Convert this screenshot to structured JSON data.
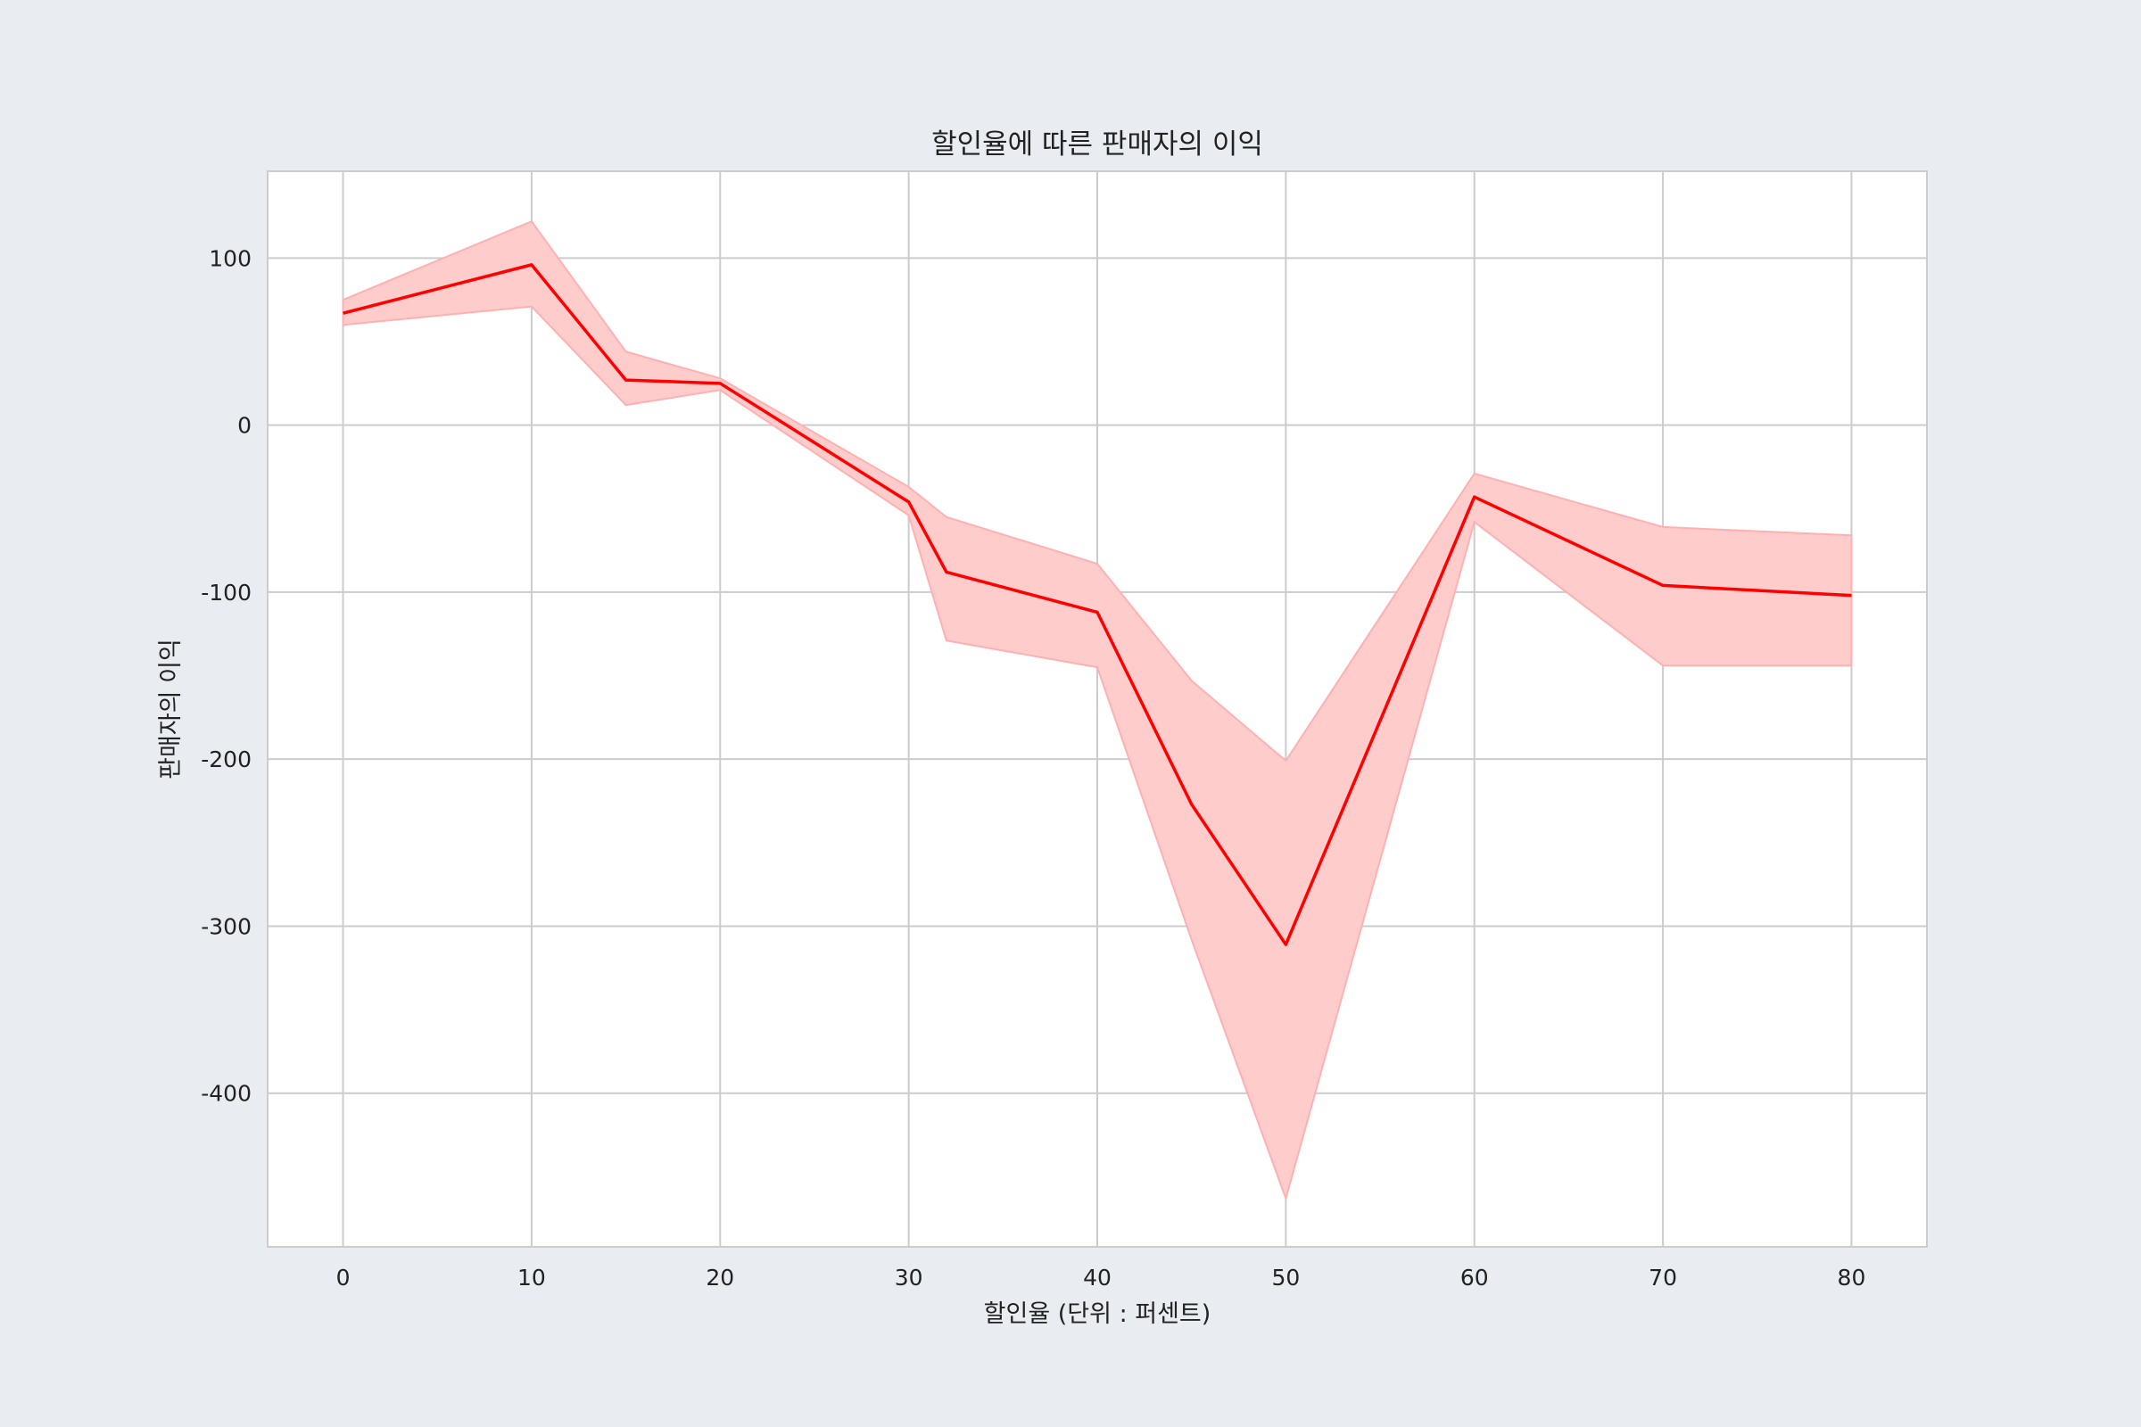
{
  "chart_data": {
    "type": "line",
    "title": "할인율에 따른 판매자의 이익",
    "xlabel": "할인율 (단위 : 퍼센트)",
    "ylabel": "판매자의 이익",
    "xlim": [
      -4,
      84
    ],
    "ylim": [
      -492,
      152
    ],
    "xticks": [
      0,
      10,
      20,
      30,
      40,
      50,
      60,
      70,
      80
    ],
    "yticks": [
      100,
      0,
      -100,
      -200,
      -300,
      -400
    ],
    "xtick_labels": [
      "0",
      "10",
      "20",
      "30",
      "40",
      "50",
      "60",
      "70",
      "80"
    ],
    "ytick_labels": [
      "100",
      "0",
      "-100",
      "-200",
      "-300",
      "-400"
    ],
    "grid": true,
    "legend": false,
    "line_color": "#ff0000",
    "band_color": "#ffcccc",
    "series": [
      {
        "x": [
          0,
          10,
          15,
          20,
          30,
          32,
          40,
          45,
          50,
          60,
          70,
          80
        ],
        "y": [
          67,
          96,
          27,
          25,
          -46,
          -88,
          -112,
          -227,
          -311,
          -43,
          -96,
          -102
        ],
        "lower": [
          60,
          71,
          12,
          21,
          -54,
          -129,
          -145,
          -308,
          -463,
          -58,
          -144,
          -144
        ],
        "upper": [
          75,
          122,
          44,
          28,
          -37,
          -55,
          -83,
          -153,
          -201,
          -29,
          -61,
          -66
        ]
      }
    ]
  }
}
